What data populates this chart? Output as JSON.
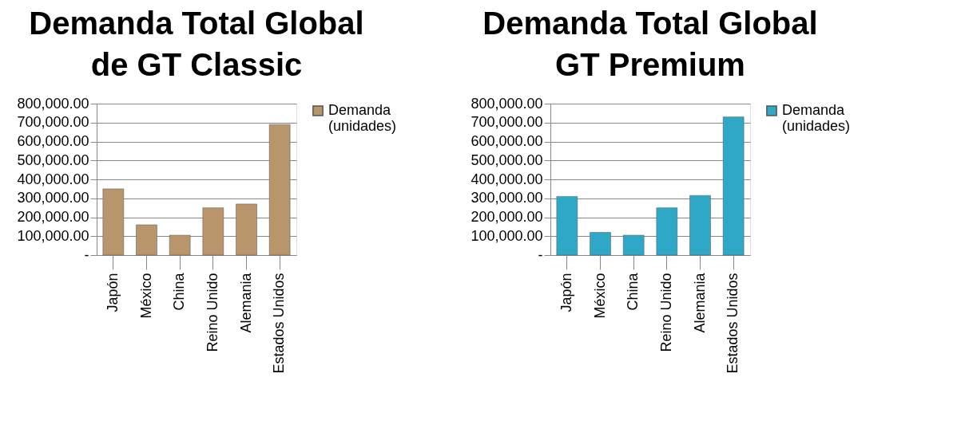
{
  "chart_data": [
    {
      "type": "bar",
      "title": "Demanda Total Global\nde GT Classic",
      "categories": [
        "Japón",
        "México",
        "China",
        "Reino Unido",
        "Alemania",
        "Estados Unidos"
      ],
      "series": [
        {
          "name": "Demanda (unidades)",
          "color": "#b8956a",
          "values": [
            350000,
            160000,
            105000,
            250000,
            270000,
            690000
          ]
        }
      ],
      "ylim": [
        0,
        800000
      ],
      "yticks": [
        {
          "value": 0,
          "label": "-"
        },
        {
          "value": 100000,
          "label": "100,000.00"
        },
        {
          "value": 200000,
          "label": "200,000.00"
        },
        {
          "value": 300000,
          "label": "300,000.00"
        },
        {
          "value": 400000,
          "label": "400,000.00"
        },
        {
          "value": 500000,
          "label": "500,000.00"
        },
        {
          "value": 600000,
          "label": "600,000.00"
        },
        {
          "value": 700000,
          "label": "700,000.00"
        },
        {
          "value": 800000,
          "label": "800,000.00"
        }
      ],
      "grid": "y",
      "legend": "right"
    },
    {
      "type": "bar",
      "title": "Demanda Total Global\nGT Premium",
      "categories": [
        "Japón",
        "México",
        "China",
        "Reino Unido",
        "Alemania",
        "Estados Unidos"
      ],
      "series": [
        {
          "name": "Demanda (unidades)",
          "color": "#2fa8c8",
          "values": [
            310000,
            120000,
            105000,
            250000,
            315000,
            730000
          ]
        }
      ],
      "ylim": [
        0,
        800000
      ],
      "yticks": [
        {
          "value": 0,
          "label": "-"
        },
        {
          "value": 100000,
          "label": "100,000.00"
        },
        {
          "value": 200000,
          "label": "200,000.00"
        },
        {
          "value": 300000,
          "label": "300,000.00"
        },
        {
          "value": 400000,
          "label": "400,000.00"
        },
        {
          "value": 500000,
          "label": "500,000.00"
        },
        {
          "value": 600000,
          "label": "600,000.00"
        },
        {
          "value": 700000,
          "label": "700,000.00"
        },
        {
          "value": 800000,
          "label": "800,000.00"
        }
      ],
      "grid": "y",
      "legend": "right"
    }
  ]
}
